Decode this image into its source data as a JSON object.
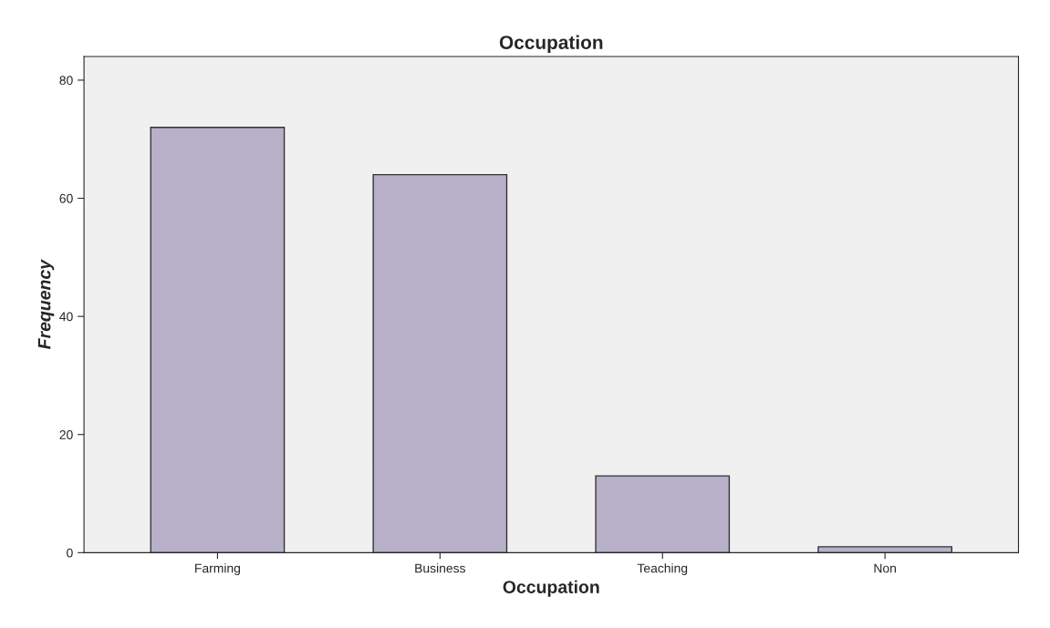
{
  "chart_data": {
    "type": "bar",
    "title": "Occupation",
    "xlabel": "Occupation",
    "ylabel": "Frequency",
    "categories": [
      "Farming",
      "Business",
      "Teaching",
      "Non"
    ],
    "values": [
      72,
      64,
      13,
      1
    ],
    "color": "#b8b0c8",
    "ylim": [
      0,
      84
    ],
    "yticks": [
      0,
      20,
      40,
      60,
      80
    ],
    "grid": false
  }
}
